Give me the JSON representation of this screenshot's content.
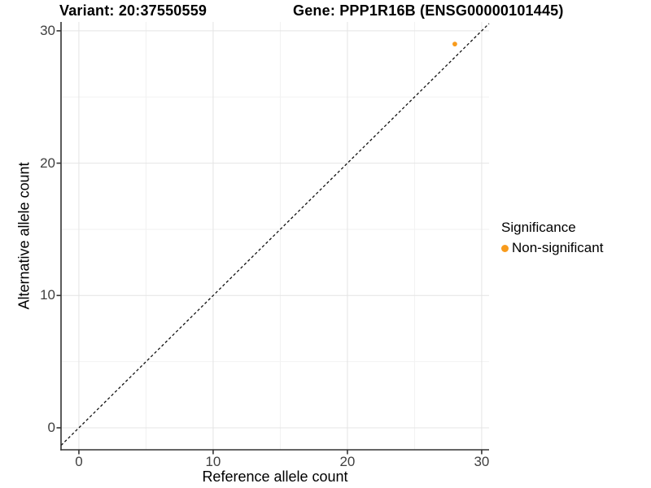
{
  "header": {
    "variant_title": "Variant: 20:37550559",
    "gene_title": "Gene: PPP1R16B (ENSG00000101445)"
  },
  "chart_data": {
    "type": "scatter",
    "xlabel": "Reference allele count",
    "ylabel": "Alternative allele count",
    "x_ticks": [
      0,
      10,
      20,
      30
    ],
    "y_ticks": [
      0,
      10,
      20,
      30
    ],
    "x_minor_gridlines": [
      5,
      15,
      25
    ],
    "y_minor_gridlines": [
      5,
      15,
      25
    ],
    "xlim": [
      -1.33,
      30.55
    ],
    "ylim": [
      -1.66,
      30.67
    ],
    "grid": "major-and-minor",
    "series": [
      {
        "name": "Non-significant",
        "color": "#F89B1C",
        "points": [
          {
            "x": 28,
            "y": 29
          }
        ]
      }
    ],
    "identity_line": {
      "slope": 1,
      "intercept": 0,
      "style": "dashed",
      "color": "#111111"
    },
    "legend": {
      "position": "right",
      "title": "Significance",
      "entries": [
        {
          "label": "Non-significant",
          "color": "#F89B1C"
        }
      ]
    }
  },
  "style": {
    "background": "#FFFFFF",
    "axis_line_color": "#333333",
    "tick_label_color": "#404040",
    "major_grid_color": "#E4E4E4",
    "minor_grid_color": "#F2F2F2",
    "point_color": "#F89B1C"
  }
}
